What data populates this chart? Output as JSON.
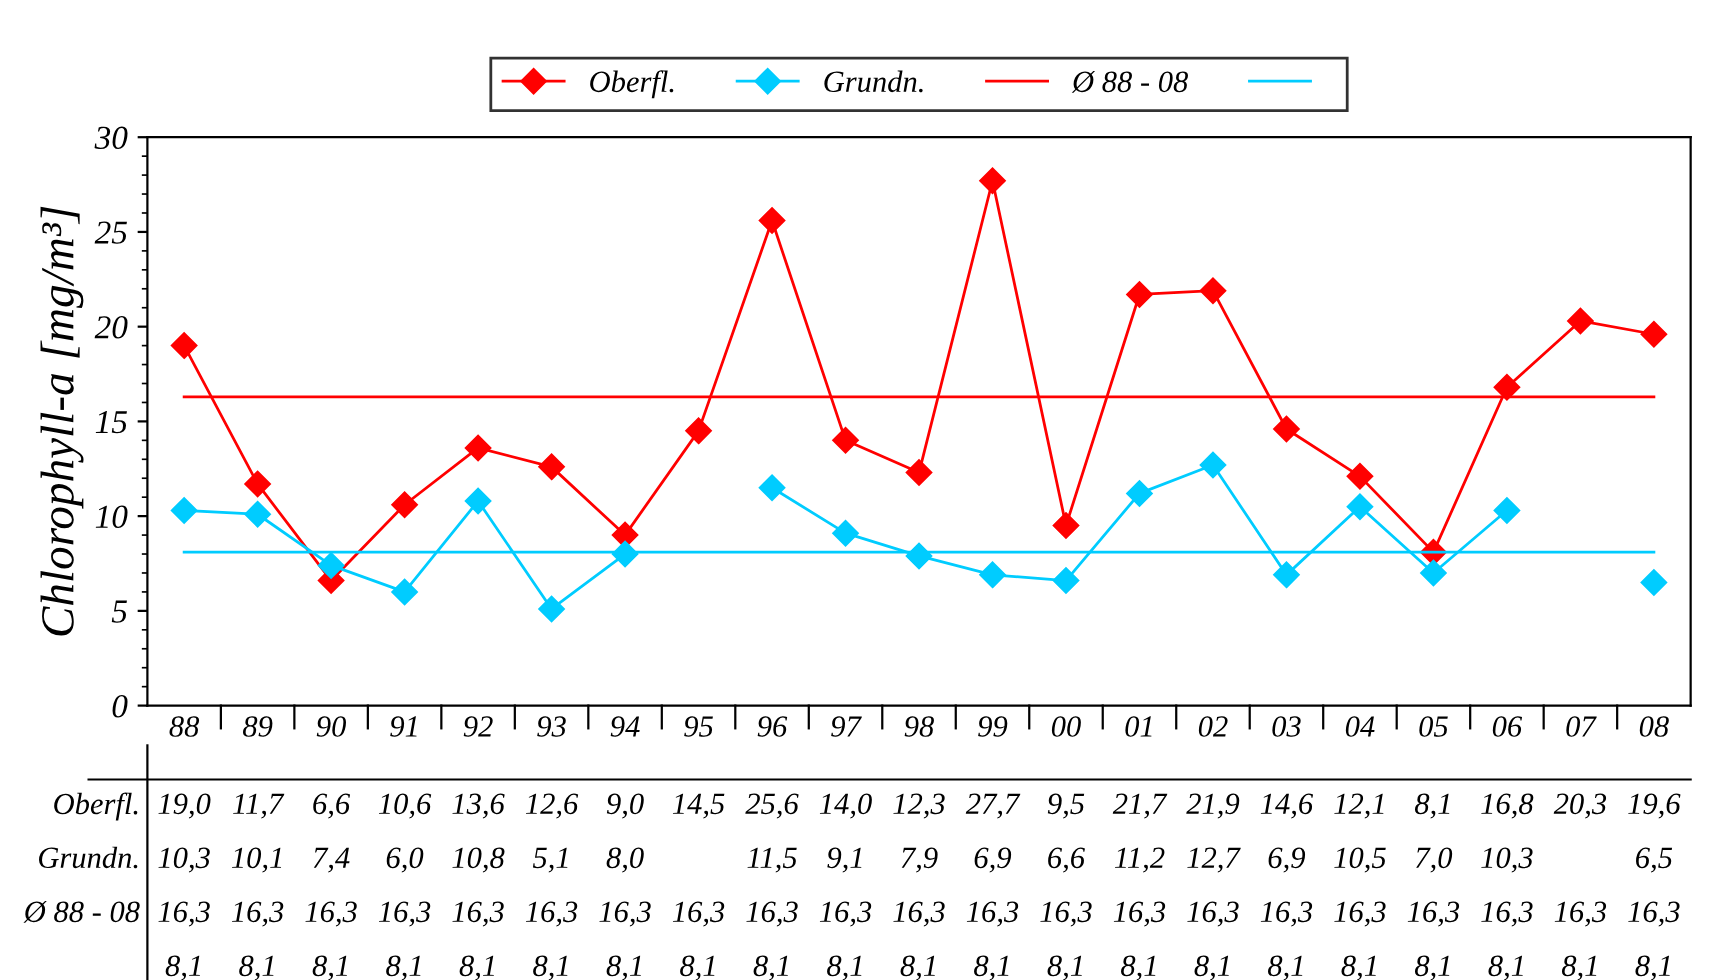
{
  "chart_data": {
    "type": "line",
    "ylabel": "Chlorophyll-a [mg/m³]",
    "categories": [
      "88",
      "89",
      "90",
      "91",
      "92",
      "93",
      "94",
      "95",
      "96",
      "97",
      "98",
      "99",
      "00",
      "01",
      "02",
      "03",
      "04",
      "05",
      "06",
      "07",
      "08"
    ],
    "ylim": [
      0,
      30
    ],
    "yticks": [
      0,
      5,
      10,
      15,
      20,
      25,
      30
    ],
    "grid": false,
    "legend": "top",
    "marker": "diamond",
    "series": [
      {
        "name": "Oberfl.",
        "color": "#ff0000",
        "values": [
          19.0,
          11.7,
          6.6,
          10.6,
          13.6,
          12.6,
          9.0,
          14.5,
          25.6,
          14.0,
          12.3,
          27.7,
          9.5,
          21.7,
          21.9,
          14.6,
          12.1,
          8.1,
          16.8,
          20.3,
          19.6
        ],
        "value_labels": [
          "19,0",
          "11,7",
          "6,6",
          "10,6",
          "13,6",
          "12,6",
          "9,0",
          "14,5",
          "25,6",
          "14,0",
          "12,3",
          "27,7",
          "9,5",
          "21,7",
          "21,9",
          "14,6",
          "12,1",
          "8,1",
          "16,8",
          "20,3",
          "19,6"
        ]
      },
      {
        "name": "Grundn.",
        "color": "#00ccff",
        "values": [
          10.3,
          10.1,
          7.4,
          6.0,
          10.8,
          5.1,
          8.0,
          null,
          11.5,
          9.1,
          7.9,
          6.9,
          6.6,
          11.2,
          12.7,
          6.9,
          10.5,
          7.0,
          10.3,
          null,
          6.5
        ],
        "value_labels": [
          "10,3",
          "10,1",
          "7,4",
          "6,0",
          "10,8",
          "5,1",
          "8,0",
          null,
          "11,5",
          "9,1",
          "7,9",
          "6,9",
          "6,6",
          "11,2",
          "12,7",
          "6,9",
          "10,5",
          "7,0",
          "10,3",
          null,
          "6,5"
        ]
      },
      {
        "name": "Ø 88 - 08",
        "color": "#ff0000",
        "marker": "none",
        "values": [
          16.3,
          16.3,
          16.3,
          16.3,
          16.3,
          16.3,
          16.3,
          16.3,
          16.3,
          16.3,
          16.3,
          16.3,
          16.3,
          16.3,
          16.3,
          16.3,
          16.3,
          16.3,
          16.3,
          16.3,
          16.3
        ],
        "value_labels": [
          "16,3",
          "16,3",
          "16,3",
          "16,3",
          "16,3",
          "16,3",
          "16,3",
          "16,3",
          "16,3",
          "16,3",
          "16,3",
          "16,3",
          "16,3",
          "16,3",
          "16,3",
          "16,3",
          "16,3",
          "16,3",
          "16,3",
          "16,3",
          "16,3"
        ]
      },
      {
        "color": "#00ccff",
        "marker": "none",
        "values": [
          8.1,
          8.1,
          8.1,
          8.1,
          8.1,
          8.1,
          8.1,
          8.1,
          8.1,
          8.1,
          8.1,
          8.1,
          8.1,
          8.1,
          8.1,
          8.1,
          8.1,
          8.1,
          8.1,
          8.1,
          8.1
        ],
        "value_labels": [
          "8,1",
          "8,1",
          "8,1",
          "8,1",
          "8,1",
          "8,1",
          "8,1",
          "8,1",
          "8,1",
          "8,1",
          "8,1",
          "8,1",
          "8,1",
          "8,1",
          "8,1",
          "8,1",
          "8,1",
          "8,1",
          "8,1",
          "8,1",
          "8,1"
        ]
      }
    ]
  }
}
